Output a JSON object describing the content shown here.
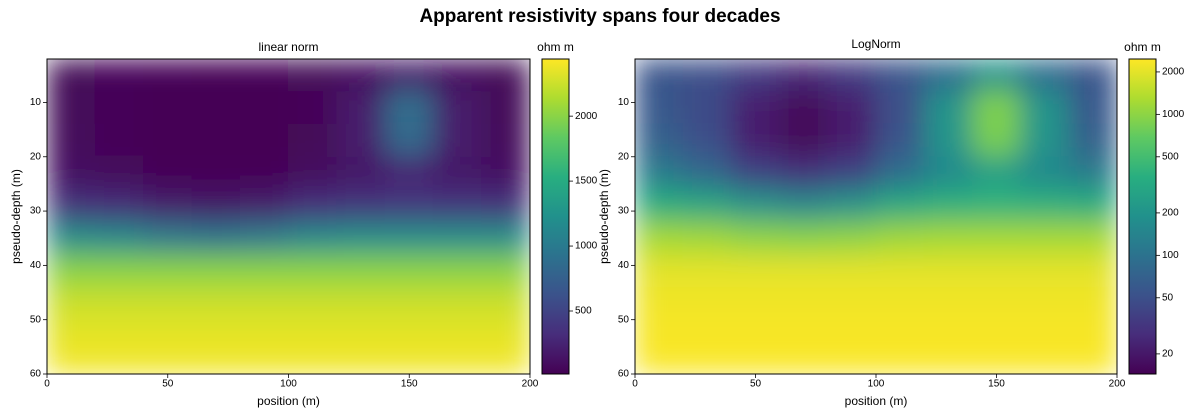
{
  "title": "Apparent resistivity spans four decades",
  "chart_data": [
    {
      "type": "heatmap",
      "title": "linear norm",
      "norm": "linear",
      "colormap": "viridis",
      "xlabel": "position (m)",
      "ylabel": "pseudo-depth (m)",
      "colorbar_label": "ohm m",
      "x_bins": [
        0,
        20,
        40,
        60,
        80,
        100,
        120,
        140,
        160,
        180,
        200
      ],
      "y_bins": [
        2,
        8,
        14,
        20,
        26,
        32,
        38,
        44,
        50,
        56,
        60
      ],
      "values": [
        [
          55,
          50,
          35,
          25,
          35,
          55,
          90,
          200,
          90,
          55
        ],
        [
          60,
          45,
          22,
          16,
          22,
          50,
          200,
          900,
          200,
          60
        ],
        [
          70,
          50,
          22,
          16,
          22,
          55,
          200,
          850,
          200,
          70
        ],
        [
          120,
          80,
          40,
          30,
          40,
          90,
          160,
          250,
          160,
          120
        ],
        [
          350,
          300,
          200,
          160,
          200,
          320,
          380,
          400,
          380,
          350
        ],
        [
          1200,
          1150,
          1000,
          950,
          1000,
          1150,
          1200,
          1200,
          1200,
          1200
        ],
        [
          2000,
          2000,
          2000,
          2000,
          2000,
          2000,
          2000,
          2000,
          2000,
          2000
        ],
        [
          2250,
          2250,
          2250,
          2250,
          2250,
          2250,
          2250,
          2250,
          2250,
          2250
        ],
        [
          2350,
          2350,
          2350,
          2350,
          2350,
          2350,
          2350,
          2350,
          2350,
          2350
        ],
        [
          2400,
          2400,
          2400,
          2400,
          2400,
          2400,
          2400,
          2400,
          2400,
          2400
        ]
      ],
      "xlim": [
        0,
        200
      ],
      "xticks": [
        0,
        50,
        100,
        150,
        200
      ],
      "ylim": [
        2,
        60
      ],
      "yticks": [
        10,
        20,
        30,
        40,
        50,
        60
      ],
      "clim": [
        15,
        2440
      ],
      "cticks": [
        500,
        1000,
        1500,
        2000
      ]
    },
    {
      "type": "heatmap",
      "title": "LogNorm",
      "norm": "log",
      "colormap": "viridis",
      "xlabel": "position (m)",
      "ylabel": "pseudo-depth (m)",
      "colorbar_label": "ohm m",
      "x_bins": [
        0,
        20,
        40,
        60,
        80,
        100,
        120,
        140,
        160,
        180,
        200
      ],
      "y_bins": [
        2,
        8,
        14,
        20,
        26,
        32,
        38,
        44,
        50,
        56,
        60
      ],
      "values": [
        [
          55,
          50,
          35,
          25,
          35,
          55,
          90,
          200,
          90,
          55
        ],
        [
          60,
          45,
          22,
          16,
          22,
          50,
          200,
          900,
          200,
          60
        ],
        [
          70,
          50,
          22,
          16,
          22,
          55,
          200,
          850,
          200,
          70
        ],
        [
          120,
          80,
          40,
          30,
          40,
          90,
          160,
          250,
          160,
          120
        ],
        [
          350,
          300,
          200,
          160,
          200,
          320,
          380,
          400,
          380,
          350
        ],
        [
          1200,
          1150,
          1000,
          950,
          1000,
          1150,
          1200,
          1200,
          1200,
          1200
        ],
        [
          2000,
          2000,
          2000,
          2000,
          2000,
          2000,
          2000,
          2000,
          2000,
          2000
        ],
        [
          2250,
          2250,
          2250,
          2250,
          2250,
          2250,
          2250,
          2250,
          2250,
          2250
        ],
        [
          2350,
          2350,
          2350,
          2350,
          2350,
          2350,
          2350,
          2350,
          2350,
          2350
        ],
        [
          2400,
          2400,
          2400,
          2400,
          2400,
          2400,
          2400,
          2400,
          2400,
          2400
        ]
      ],
      "xlim": [
        0,
        200
      ],
      "xticks": [
        0,
        50,
        100,
        150,
        200
      ],
      "ylim": [
        2,
        60
      ],
      "yticks": [
        10,
        20,
        30,
        40,
        50,
        60
      ],
      "clim": [
        14.4,
        2470
      ],
      "cticks": [
        20,
        50,
        100,
        200,
        500,
        1000,
        2000
      ]
    }
  ]
}
